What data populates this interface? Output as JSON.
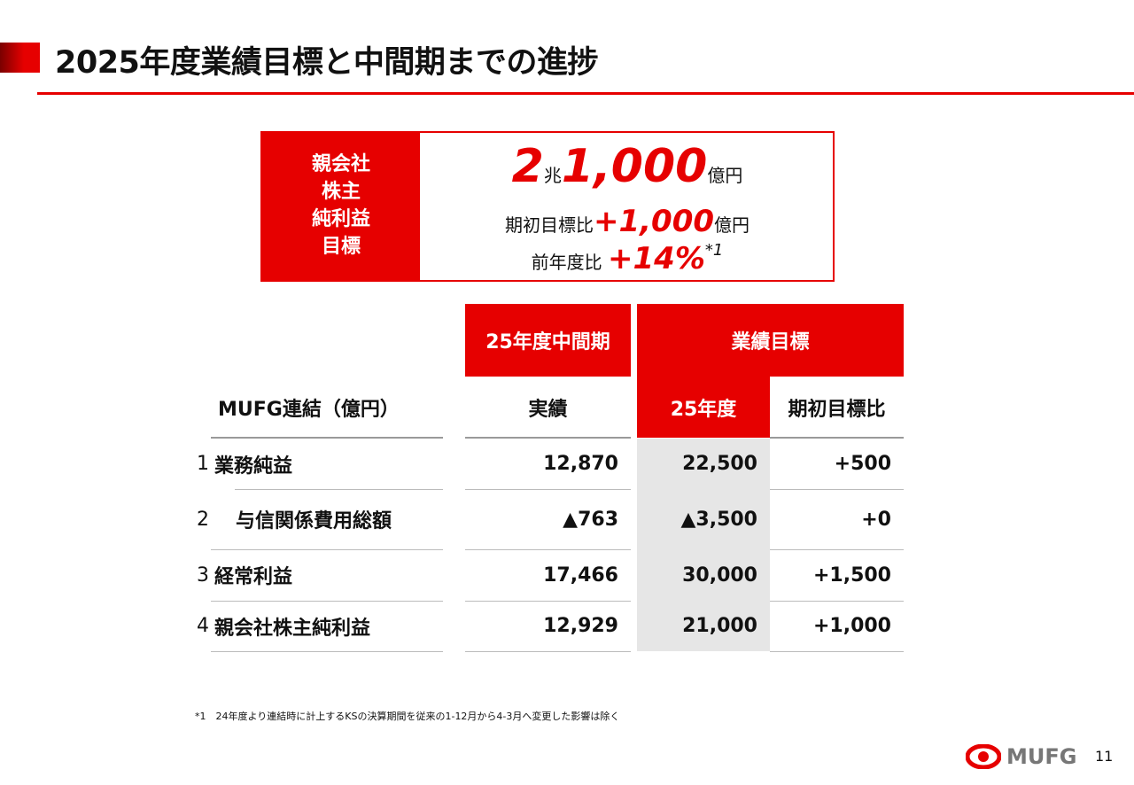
{
  "title": "2025年度業績目標と中間期までの進捗",
  "target_box": {
    "label_lines": [
      "親会社",
      "株主",
      "純利益",
      "目標"
    ],
    "value_cho": "2",
    "unit_cho": "兆",
    "value_oku": "1,000",
    "unit_oku": "億円",
    "vs_initial_label": "期初目標比",
    "vs_initial_value": "+1,000",
    "vs_initial_unit": "億円",
    "yoy_label": "前年度比",
    "yoy_value": "+14%",
    "yoy_note": "*1"
  },
  "table": {
    "header_group1": "25年度中間期",
    "header_group2": "業績目標",
    "row_header": "MUFG連結（億円）",
    "col1": "実績",
    "col2": "25年度",
    "col3": "期初目標比",
    "rows": [
      {
        "idx": "1",
        "label": "業務純益",
        "actual": "12,870",
        "target": "22,500",
        "diff": "+500"
      },
      {
        "idx": "2",
        "label": "与信関係費用総額",
        "actual": "▲763",
        "target": "▲3,500",
        "diff": "+0"
      },
      {
        "idx": "3",
        "label": "経常利益",
        "actual": "17,466",
        "target": "30,000",
        "diff": "+1,500"
      },
      {
        "idx": "4",
        "label": "親会社株主純利益",
        "actual": "12,929",
        "target": "21,000",
        "diff": "+1,000"
      }
    ]
  },
  "footnote": "*1　24年度より連結時に計上するKSの決算期間を従来の1-12月から4-3月へ変更した影響は除く",
  "logo_text": "MUFG",
  "page_number": "11",
  "colors": {
    "accent": "#e60000",
    "gray_cell": "#e6e6e6"
  }
}
